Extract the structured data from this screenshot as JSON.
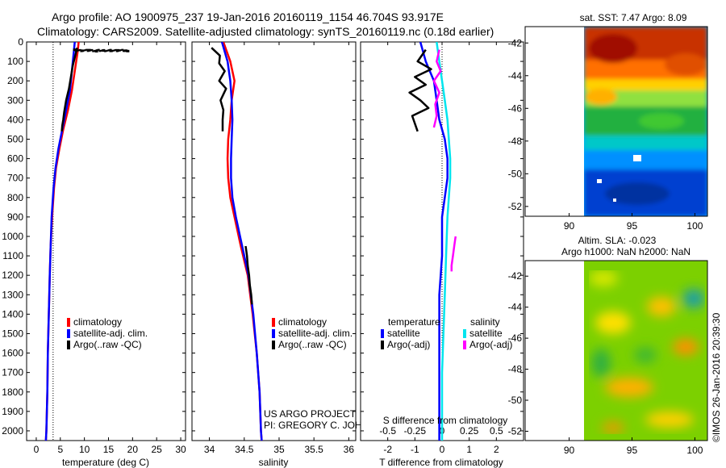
{
  "header": {
    "line1": "Argo profile: AO 1900975_237 19-Jan-2016 20160119_1154 46.704S 93.917E",
    "line2": "Climatology: CARS2009. Satellite-adjusted climatology: synTS_20160119.nc (0.18d earlier)"
  },
  "credits": {
    "project": "US ARGO PROJECT",
    "pi": "PI: GREGORY C. JOHNSON",
    "imos": "©IMOS 26-Jan-2016 20:39:30"
  },
  "colors": {
    "climatology": "#ff0000",
    "satellite": "#0000ff",
    "argo": "#000000",
    "sat_salinity": "#00e5ee",
    "argo_salinity": "#ff00ff"
  },
  "chart_data": [
    {
      "type": "line",
      "title": "",
      "xlabel": "temperature (deg C)",
      "ylabel": "",
      "xlim": [
        -2,
        31
      ],
      "ylim": [
        2050,
        0
      ],
      "xticks": [
        "0",
        "5",
        "10",
        "15",
        "20",
        "25",
        "30"
      ],
      "xtick_values": [
        0,
        5,
        10,
        15,
        20,
        25,
        30
      ],
      "yticks": [
        "0",
        "100",
        "200",
        "300",
        "400",
        "500",
        "600",
        "700",
        "800",
        "900",
        "1000",
        "1100",
        "1200",
        "1300",
        "1400",
        "1500",
        "1600",
        "1700",
        "1800",
        "1900",
        "2000"
      ],
      "ytick_values": [
        0,
        100,
        200,
        300,
        400,
        500,
        600,
        700,
        800,
        900,
        1000,
        1100,
        1200,
        1300,
        1400,
        1500,
        1600,
        1700,
        1800,
        1900,
        2000
      ],
      "reference_line": {
        "x": 3.5,
        "style": "dotted"
      },
      "legend": [
        "climatology",
        "satellite-adj. clim.",
        "Argo(..raw -QC)"
      ],
      "series": [
        {
          "name": "climatology",
          "color": "#ff0000",
          "x": [
            8.8,
            8.6,
            8.0,
            7.4,
            6.6,
            5.6,
            4.8,
            4.1,
            3.7,
            3.3,
            3.0,
            2.8,
            2.6,
            2.4,
            2.3,
            2.1,
            2.0
          ],
          "y": [
            0,
            50,
            150,
            250,
            350,
            450,
            550,
            650,
            750,
            900,
            1050,
            1200,
            1400,
            1600,
            1800,
            2000,
            2050
          ]
        },
        {
          "name": "satellite-adj. clim.",
          "color": "#0000ff",
          "x": [
            8.0,
            7.8,
            7.4,
            7.0,
            6.2,
            5.4,
            4.6,
            4.0,
            3.6,
            3.2,
            3.0,
            2.8,
            2.6,
            2.4,
            2.3,
            2.1,
            2.0
          ],
          "y": [
            0,
            50,
            150,
            250,
            350,
            450,
            550,
            650,
            750,
            900,
            1050,
            1200,
            1400,
            1600,
            1800,
            2000,
            2050
          ]
        },
        {
          "name": "Argo(..raw -QC)",
          "color": "#000000",
          "x": [
            8.5,
            8.2,
            7.6,
            7.2,
            6.8,
            6.2,
            5.8,
            5.6,
            5.4,
            5.3
          ],
          "y": [
            30,
            60,
            120,
            180,
            240,
            300,
            360,
            400,
            430,
            460
          ]
        },
        {
          "name": "Argo surface scatter",
          "color": "#000000",
          "style": "markers",
          "x": [
            8.0,
            9.5,
            11.0,
            12.5,
            14.0,
            15.5,
            17.0,
            18.5,
            19.0
          ],
          "y": [
            40,
            45,
            42,
            48,
            44,
            46,
            43,
            45,
            47
          ]
        }
      ]
    },
    {
      "type": "line",
      "title": "",
      "xlabel": "salinity",
      "ylabel": "",
      "xlim": [
        33.75,
        36.1
      ],
      "ylim": [
        2050,
        0
      ],
      "xticks": [
        "34",
        "34.5",
        "35",
        "35.5",
        "36"
      ],
      "xtick_values": [
        34,
        34.5,
        35,
        35.5,
        36
      ],
      "legend": [
        "climatology",
        "satellite-adj. clim.",
        "Argo(..raw -QC)"
      ],
      "series": [
        {
          "name": "climatology",
          "color": "#ff0000",
          "x": [
            34.2,
            34.3,
            34.36,
            34.32,
            34.3,
            34.27,
            34.26,
            34.27,
            34.3,
            34.36,
            34.45,
            34.55,
            34.62,
            34.68,
            34.72,
            34.74,
            34.75
          ],
          "y": [
            0,
            100,
            200,
            300,
            400,
            500,
            600,
            700,
            800,
            900,
            1050,
            1200,
            1400,
            1600,
            1800,
            2000,
            2050
          ]
        },
        {
          "name": "satellite-adj. clim.",
          "color": "#0000ff",
          "x": [
            34.18,
            34.26,
            34.3,
            34.32,
            34.33,
            34.32,
            34.31,
            34.31,
            34.33,
            34.38,
            34.47,
            34.56,
            34.63,
            34.68,
            34.72,
            34.74,
            34.75
          ],
          "y": [
            0,
            100,
            200,
            300,
            400,
            500,
            600,
            700,
            800,
            900,
            1050,
            1200,
            1400,
            1600,
            1800,
            2000,
            2050
          ]
        },
        {
          "name": "Argo(..raw -QC)",
          "color": "#000000",
          "x": [
            34.03,
            34.15,
            34.14,
            34.22,
            34.14,
            34.24,
            34.16,
            34.2,
            34.19,
            34.19
          ],
          "y": [
            30,
            70,
            110,
            150,
            200,
            240,
            300,
            350,
            400,
            460
          ]
        },
        {
          "name": "Argo deep",
          "color": "#000000",
          "x": [
            34.52,
            34.54,
            34.55,
            34.57,
            34.58,
            34.6,
            34.61
          ],
          "y": [
            1050,
            1100,
            1150,
            1200,
            1250,
            1300,
            1350
          ]
        }
      ]
    },
    {
      "type": "line",
      "title": "",
      "xlabel": "T difference from climatology",
      "xlabel_top": "S difference from climatology",
      "ylabel": "",
      "xlim": [
        -3,
        3
      ],
      "ylim": [
        2050,
        0
      ],
      "xticks": [
        "-2",
        "-1",
        "0",
        "1",
        "2"
      ],
      "xtick_values": [
        -2,
        -1,
        0,
        1,
        2
      ],
      "xticks_top": [
        "-0.5",
        "-0.25",
        "0",
        "0.25",
        "0.5"
      ],
      "xtick_top_values": [
        -2,
        -1,
        0,
        1,
        2
      ],
      "reference_line": {
        "x": 0,
        "style": "dotted"
      },
      "legend_titles": [
        "temperature",
        "salinity"
      ],
      "legend": [
        "satellite",
        "Argo(-adj)",
        "satellite",
        "Argo(-adj)"
      ],
      "series": [
        {
          "name": "temperature satellite",
          "color": "#0000ff",
          "x": [
            -0.8,
            -0.6,
            -0.3,
            -0.2,
            -0.1,
            0.1,
            0.2,
            0.2,
            0.1,
            0.0,
            0.0,
            -0.1,
            -0.1,
            -0.1,
            -0.1,
            -0.1
          ],
          "y": [
            0,
            100,
            200,
            300,
            400,
            500,
            600,
            700,
            800,
            900,
            1100,
            1300,
            1500,
            1700,
            1900,
            2050
          ]
        },
        {
          "name": "temperature Argo(-adj)",
          "color": "#000000",
          "x": [
            -0.6,
            -0.9,
            -0.4,
            -1.0,
            -0.6,
            -1.2,
            -0.8,
            -0.5,
            -1.1,
            -0.9
          ],
          "y": [
            40,
            100,
            140,
            180,
            220,
            260,
            300,
            340,
            380,
            460
          ]
        },
        {
          "name": "salinity satellite",
          "color": "#00e5ee",
          "x": [
            -0.2,
            -0.1,
            0.0,
            0.1,
            0.2,
            0.25,
            0.3,
            0.3,
            0.25,
            0.2,
            0.15,
            0.1,
            0.05,
            0.0,
            0.0,
            0.0
          ],
          "y": [
            0,
            100,
            200,
            300,
            400,
            500,
            600,
            700,
            800,
            900,
            1100,
            1300,
            1500,
            1700,
            1900,
            2050
          ]
        },
        {
          "name": "salinity Argo(-adj)",
          "color": "#ff00ff",
          "x": [
            -0.1,
            -0.2,
            -0.05,
            -0.3,
            -0.1,
            -0.25,
            -0.2,
            -0.3
          ],
          "y": [
            40,
            100,
            150,
            200,
            260,
            320,
            380,
            440
          ]
        },
        {
          "name": "salinity Argo deep",
          "color": "#ff00ff",
          "x": [
            0.5,
            0.45,
            0.4,
            0.35,
            0.35
          ],
          "y": [
            1000,
            1050,
            1100,
            1150,
            1180
          ]
        }
      ]
    },
    {
      "type": "heatmap",
      "title": "sat. SST: 7.47 Argo: 8.09",
      "xlim": [
        86.5,
        101
      ],
      "ylim": [
        -52.6,
        -41
      ],
      "xticks": [
        "90",
        "95",
        "100"
      ],
      "xtick_values": [
        90,
        95,
        100
      ],
      "yticks": [
        "-42",
        "-44",
        "-46",
        "-48",
        "-50",
        "-52"
      ],
      "ytick_values": [
        -42,
        -44,
        -46,
        -48,
        -50,
        -52
      ],
      "data_lon_range": [
        90,
        101
      ],
      "colormap": "jet",
      "field": "SST, warm (north) to cold (south)"
    },
    {
      "type": "heatmap",
      "title": "Altim. SLA: -0.023",
      "subtitle": "Argo h1000: NaN h2000: NaN",
      "xlim": [
        86.5,
        101
      ],
      "ylim": [
        -52.6,
        -41
      ],
      "xticks": [
        "90",
        "95",
        "100"
      ],
      "xtick_values": [
        90,
        95,
        100
      ],
      "yticks": [
        "-42",
        "-44",
        "-46",
        "-48",
        "-50",
        "-52"
      ],
      "ytick_values": [
        -42,
        -44,
        -46,
        -48,
        -50,
        -52
      ],
      "data_lon_range": [
        90,
        101
      ],
      "colormap": "jet",
      "field": "sea level anomaly"
    }
  ]
}
